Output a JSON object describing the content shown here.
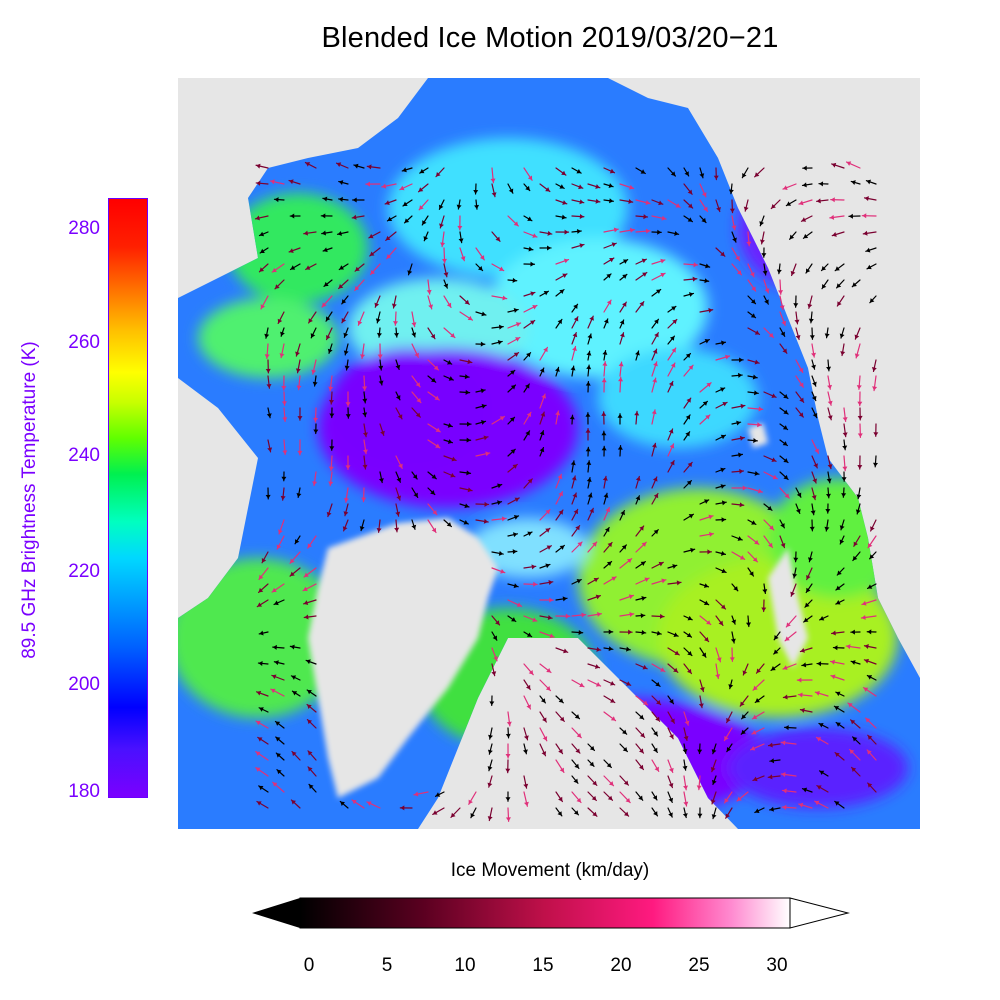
{
  "title": "Blended Ice Motion  2019/03/20−21",
  "brightness_colorbar": {
    "label": "89.5 GHz Brightness Temperature (K)",
    "min": 180,
    "max": 285,
    "ticks": [
      "180",
      "200",
      "220",
      "240",
      "260",
      "280"
    ],
    "tick_values": [
      180,
      200,
      220,
      240,
      260,
      280
    ]
  },
  "movement_colorbar": {
    "label": "Ice Movement (km/day)",
    "min": 0,
    "max": 30,
    "ticks": [
      "0",
      "5",
      "10",
      "15",
      "20",
      "25",
      "30"
    ],
    "tick_values": [
      0,
      5,
      10,
      15,
      20,
      25,
      30
    ]
  },
  "colors": {
    "land": "#e6e6e6",
    "thin_ice": "#7a00ff",
    "mid_ice": "#2a7cff",
    "warm_ice": "#33e86a",
    "label_purple": "#7a00ff"
  }
}
